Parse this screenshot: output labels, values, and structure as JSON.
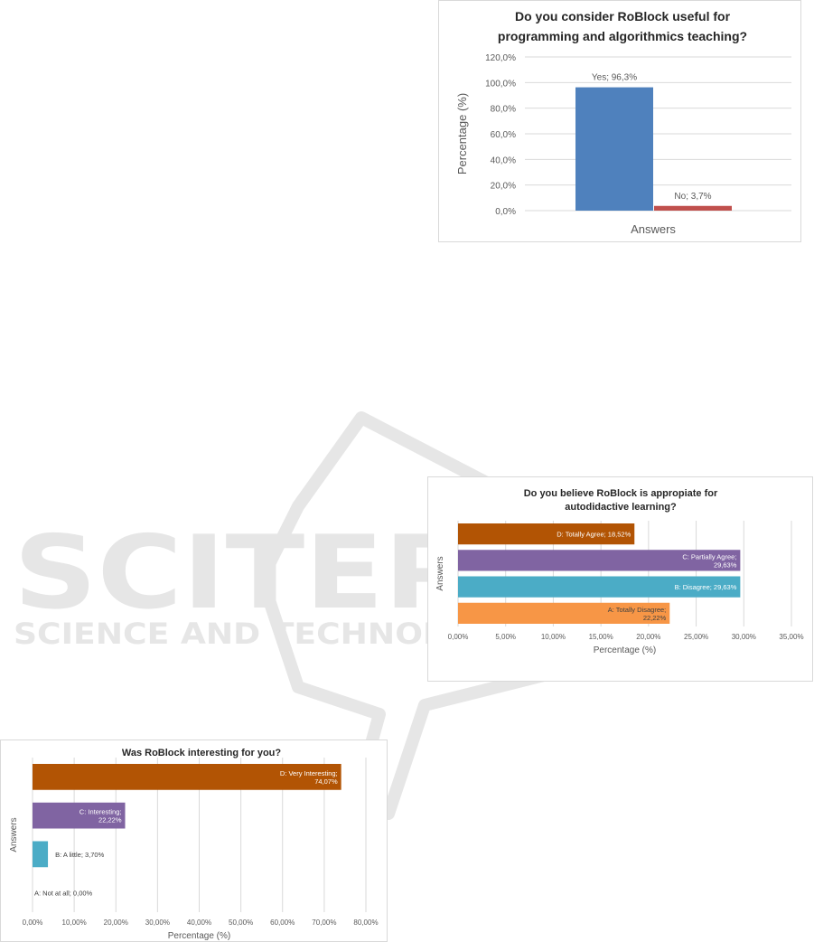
{
  "watermark": {
    "main": "SCITEPRESS",
    "sub": "SCIENCE AND TECHNOLOGY PUBLICATIONS"
  },
  "colors": {
    "blue": "#4f81bd",
    "red": "#c0504d",
    "dark_orange": "#b25404",
    "purple": "#8064a2",
    "teal": "#4bacc6",
    "orange": "#f79646",
    "grid": "#d9d9d9",
    "text": "#595959",
    "title": "#262626"
  },
  "chart_data": [
    {
      "type": "bar",
      "title_lines": [
        "Do you consider RoBlock useful for",
        "programming and algorithmics teaching?"
      ],
      "xlabel": "Answers",
      "ylabel": "Percentage (%)",
      "ylim": [
        0,
        120
      ],
      "yticks": [
        "0,0%",
        "20,0%",
        "40,0%",
        "60,0%",
        "80,0%",
        "100,0%",
        "120,0%"
      ],
      "categories": [
        "Yes",
        "No"
      ],
      "values": [
        96.3,
        3.7
      ],
      "data_labels": [
        "Yes; 96,3%",
        "No; 3,7%"
      ],
      "bar_colors": [
        "#4f81bd",
        "#c0504d"
      ],
      "grid": true,
      "legend": "none"
    },
    {
      "type": "bar",
      "orientation": "horizontal",
      "title_lines": [
        "Do you believe RoBlock is appropiate for",
        "autodidactive learning?"
      ],
      "xlabel": "Percentage (%)",
      "ylabel": "Answers",
      "xlim": [
        0,
        35
      ],
      "xticks": [
        "0,00%",
        "5,00%",
        "10,00%",
        "15,00%",
        "20,00%",
        "25,00%",
        "30,00%",
        "35,00%"
      ],
      "categories": [
        "A: Totally Disagree",
        "B: Disagree",
        "C: Partially Agree",
        "D: Totally Agree"
      ],
      "values": [
        22.22,
        29.63,
        29.63,
        18.52
      ],
      "data_labels": [
        [
          "A: Totally Disagree;",
          "22,22%"
        ],
        [
          "B: Disagree; 29,63%"
        ],
        [
          "C: Partially Agree;",
          "29,63%"
        ],
        [
          "D: Totally Agree; 18,52%"
        ]
      ],
      "bar_colors": [
        "#f79646",
        "#4bacc6",
        "#8064a2",
        "#b25404"
      ],
      "grid": true,
      "legend": "none"
    },
    {
      "type": "bar",
      "orientation": "horizontal",
      "title_lines": [
        "Was RoBlock interesting for you?"
      ],
      "xlabel": "Percentage (%)",
      "ylabel": "Answers",
      "xlim": [
        0,
        80
      ],
      "xticks": [
        "0,00%",
        "10,00%",
        "20,00%",
        "30,00%",
        "40,00%",
        "50,00%",
        "60,00%",
        "70,00%",
        "80,00%"
      ],
      "categories": [
        "A: Not at all",
        "B: A little",
        "C: Interesting",
        "D: Very Interesting"
      ],
      "values": [
        0.0,
        3.7,
        22.22,
        74.07
      ],
      "data_labels": [
        [
          "A: Not at all; 0,00%"
        ],
        [
          "B: A little; 3,70%"
        ],
        [
          "C: Interesting;",
          "22,22%"
        ],
        [
          "D: Very Interesting;",
          "74,07%"
        ]
      ],
      "bar_colors": [
        "#f79646",
        "#4bacc6",
        "#8064a2",
        "#b25404"
      ],
      "grid": true,
      "legend": "none"
    }
  ]
}
